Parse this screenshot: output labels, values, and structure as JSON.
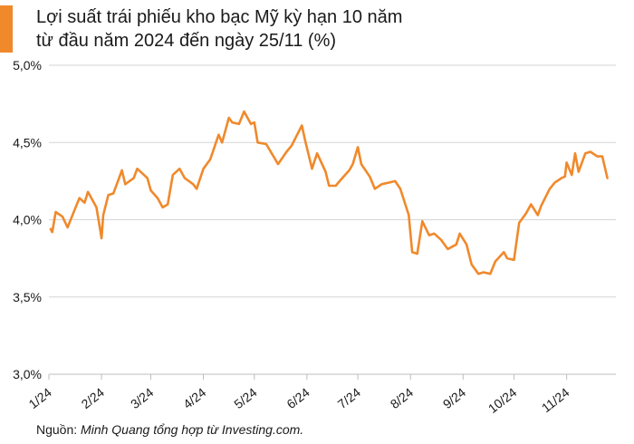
{
  "header": {
    "title_line1": "Lợi suất trái phiếu kho bạc Mỹ kỳ hạn 10 năm",
    "title_line2": "từ đầu năm 2024 đến ngày 25/11 (%)"
  },
  "source": {
    "label": "Nguồn: ",
    "text": "Minh Quang tổng hợp từ Investing.com."
  },
  "colors": {
    "accent": "#f0892b",
    "line": "#f0892b",
    "grid": "#d6d6d6",
    "axis": "#bdbdbd"
  },
  "chart_data": {
    "type": "line",
    "title": "Lợi suất trái phiếu kho bạc Mỹ kỳ hạn 10 năm từ đầu năm 2024 đến ngày 25/11 (%)",
    "xlabel": "",
    "ylabel": "",
    "grid": "horizontal",
    "ylim": [
      3.0,
      5.0
    ],
    "y_ticks": [
      {
        "value": 5.0,
        "label": "5,0%"
      },
      {
        "value": 4.5,
        "label": "4,5%"
      },
      {
        "value": 4.0,
        "label": "4,0%"
      },
      {
        "value": 3.5,
        "label": "3,5%"
      },
      {
        "value": 3.0,
        "label": "3,0%"
      }
    ],
    "x_ticks": [
      {
        "date": "2024-01-01",
        "label": "1/24"
      },
      {
        "date": "2024-02-01",
        "label": "2/24"
      },
      {
        "date": "2024-03-01",
        "label": "3/24"
      },
      {
        "date": "2024-04-01",
        "label": "4/24"
      },
      {
        "date": "2024-05-01",
        "label": "5/24"
      },
      {
        "date": "2024-06-01",
        "label": "6/24"
      },
      {
        "date": "2024-07-01",
        "label": "7/24"
      },
      {
        "date": "2024-08-01",
        "label": "8/24"
      },
      {
        "date": "2024-09-01",
        "label": "9/24"
      },
      {
        "date": "2024-10-01",
        "label": "10/24"
      },
      {
        "date": "2024-11-01",
        "label": "11/24"
      }
    ],
    "series": [
      {
        "points": [
          [
            "2024-01-02",
            3.94
          ],
          [
            "2024-01-03",
            3.92
          ],
          [
            "2024-01-05",
            4.05
          ],
          [
            "2024-01-09",
            4.02
          ],
          [
            "2024-01-12",
            3.95
          ],
          [
            "2024-01-16",
            4.06
          ],
          [
            "2024-01-19",
            4.14
          ],
          [
            "2024-01-22",
            4.11
          ],
          [
            "2024-01-24",
            4.18
          ],
          [
            "2024-01-26",
            4.14
          ],
          [
            "2024-01-29",
            4.08
          ],
          [
            "2024-01-31",
            3.95
          ],
          [
            "2024-02-01",
            3.88
          ],
          [
            "2024-02-02",
            4.03
          ],
          [
            "2024-02-05",
            4.16
          ],
          [
            "2024-02-08",
            4.17
          ],
          [
            "2024-02-13",
            4.32
          ],
          [
            "2024-02-15",
            4.23
          ],
          [
            "2024-02-20",
            4.27
          ],
          [
            "2024-02-22",
            4.33
          ],
          [
            "2024-02-26",
            4.29
          ],
          [
            "2024-02-28",
            4.27
          ],
          [
            "2024-03-01",
            4.19
          ],
          [
            "2024-03-05",
            4.14
          ],
          [
            "2024-03-08",
            4.08
          ],
          [
            "2024-03-11",
            4.1
          ],
          [
            "2024-03-14",
            4.29
          ],
          [
            "2024-03-18",
            4.33
          ],
          [
            "2024-03-21",
            4.27
          ],
          [
            "2024-03-26",
            4.23
          ],
          [
            "2024-03-28",
            4.2
          ],
          [
            "2024-04-01",
            4.33
          ],
          [
            "2024-04-03",
            4.36
          ],
          [
            "2024-04-05",
            4.39
          ],
          [
            "2024-04-10",
            4.55
          ],
          [
            "2024-04-12",
            4.5
          ],
          [
            "2024-04-16",
            4.66
          ],
          [
            "2024-04-18",
            4.63
          ],
          [
            "2024-04-22",
            4.62
          ],
          [
            "2024-04-25",
            4.7
          ],
          [
            "2024-04-29",
            4.62
          ],
          [
            "2024-05-01",
            4.63
          ],
          [
            "2024-05-03",
            4.5
          ],
          [
            "2024-05-08",
            4.49
          ],
          [
            "2024-05-15",
            4.36
          ],
          [
            "2024-05-20",
            4.44
          ],
          [
            "2024-05-23",
            4.48
          ],
          [
            "2024-05-29",
            4.61
          ],
          [
            "2024-05-31",
            4.51
          ],
          [
            "2024-06-04",
            4.33
          ],
          [
            "2024-06-07",
            4.43
          ],
          [
            "2024-06-12",
            4.31
          ],
          [
            "2024-06-14",
            4.22
          ],
          [
            "2024-06-18",
            4.22
          ],
          [
            "2024-06-21",
            4.26
          ],
          [
            "2024-06-26",
            4.32
          ],
          [
            "2024-06-28",
            4.36
          ],
          [
            "2024-07-01",
            4.47
          ],
          [
            "2024-07-03",
            4.36
          ],
          [
            "2024-07-08",
            4.28
          ],
          [
            "2024-07-11",
            4.2
          ],
          [
            "2024-07-15",
            4.23
          ],
          [
            "2024-07-19",
            4.24
          ],
          [
            "2024-07-23",
            4.25
          ],
          [
            "2024-07-26",
            4.2
          ],
          [
            "2024-07-31",
            4.03
          ],
          [
            "2024-08-02",
            3.79
          ],
          [
            "2024-08-05",
            3.78
          ],
          [
            "2024-08-08",
            3.99
          ],
          [
            "2024-08-12",
            3.9
          ],
          [
            "2024-08-15",
            3.91
          ],
          [
            "2024-08-19",
            3.87
          ],
          [
            "2024-08-23",
            3.81
          ],
          [
            "2024-08-28",
            3.84
          ],
          [
            "2024-08-30",
            3.91
          ],
          [
            "2024-09-03",
            3.84
          ],
          [
            "2024-09-06",
            3.71
          ],
          [
            "2024-09-10",
            3.65
          ],
          [
            "2024-09-13",
            3.66
          ],
          [
            "2024-09-17",
            3.65
          ],
          [
            "2024-09-20",
            3.73
          ],
          [
            "2024-09-25",
            3.79
          ],
          [
            "2024-09-27",
            3.75
          ],
          [
            "2024-10-01",
            3.74
          ],
          [
            "2024-10-04",
            3.98
          ],
          [
            "2024-10-08",
            4.04
          ],
          [
            "2024-10-11",
            4.1
          ],
          [
            "2024-10-15",
            4.03
          ],
          [
            "2024-10-17",
            4.09
          ],
          [
            "2024-10-22",
            4.2
          ],
          [
            "2024-10-25",
            4.24
          ],
          [
            "2024-10-29",
            4.27
          ],
          [
            "2024-10-31",
            4.28
          ],
          [
            "2024-11-01",
            4.37
          ],
          [
            "2024-11-04",
            4.29
          ],
          [
            "2024-11-06",
            4.43
          ],
          [
            "2024-11-08",
            4.31
          ],
          [
            "2024-11-12",
            4.43
          ],
          [
            "2024-11-15",
            4.44
          ],
          [
            "2024-11-19",
            4.41
          ],
          [
            "2024-11-22",
            4.41
          ],
          [
            "2024-11-25",
            4.27
          ]
        ]
      }
    ]
  }
}
